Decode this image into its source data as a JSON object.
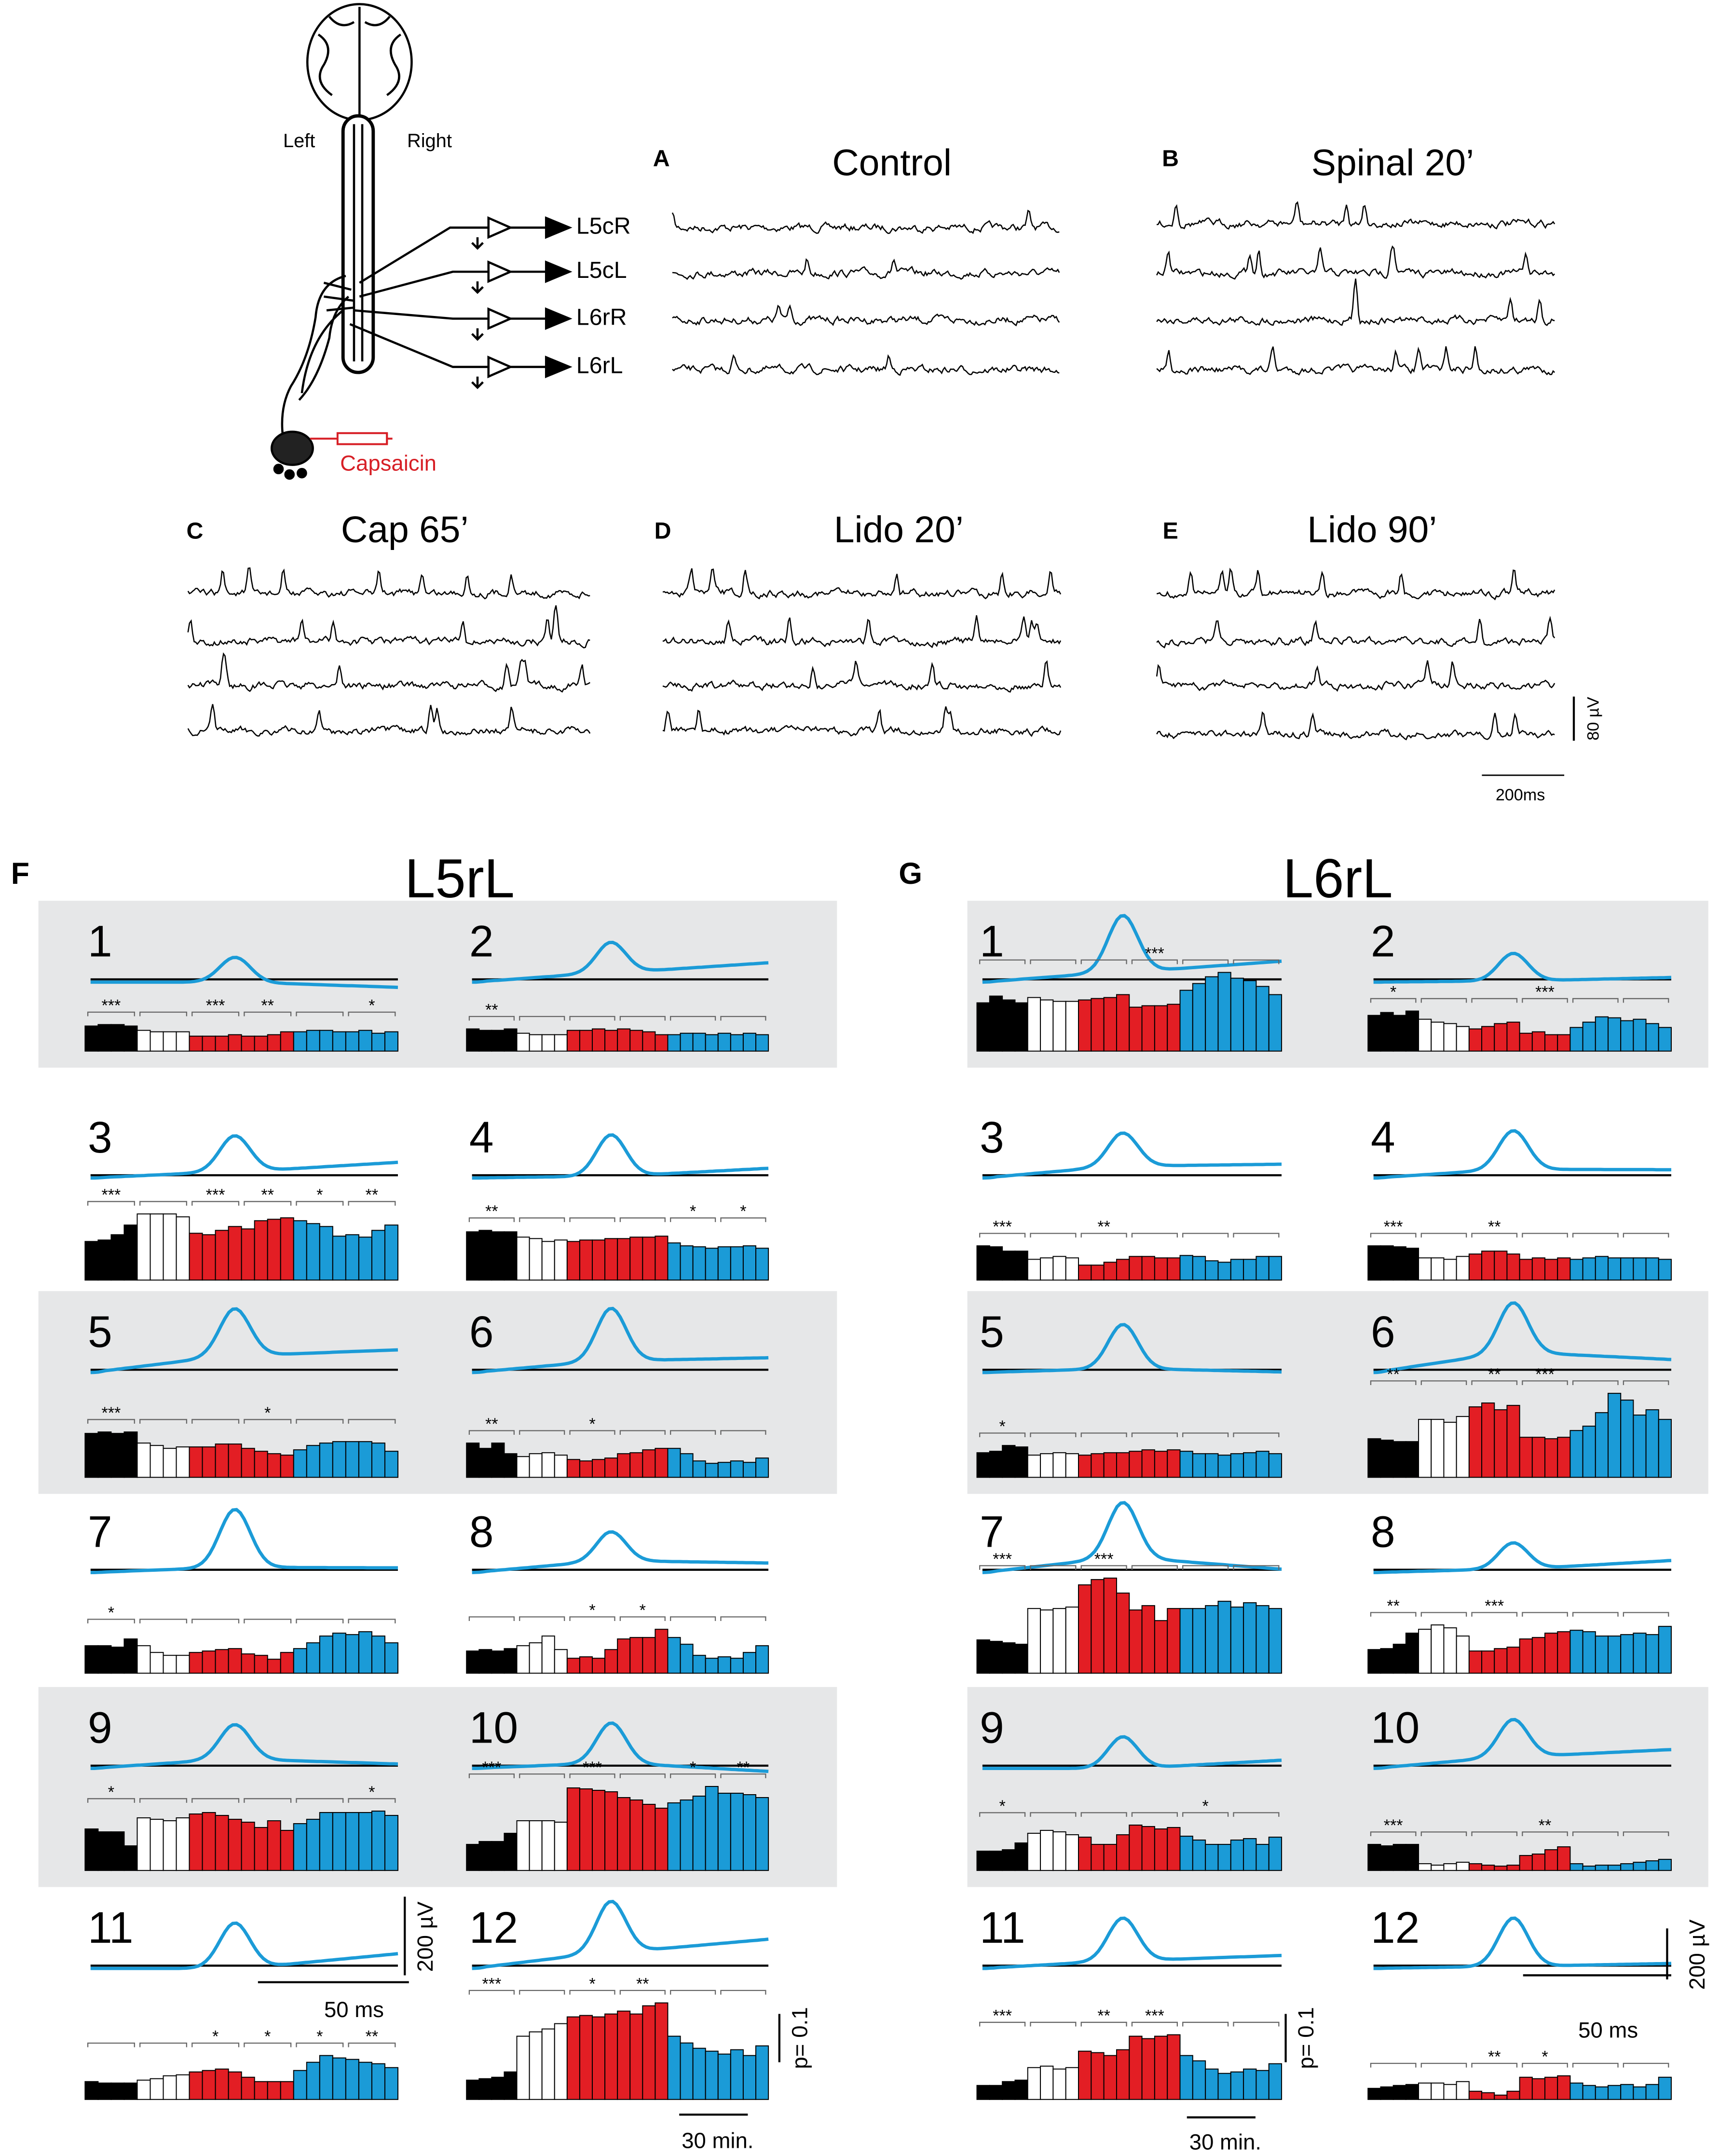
{
  "figure": {
    "rat": {
      "left": "Left",
      "right": "Right",
      "drug": "Capsaicin"
    },
    "channels": [
      "L5cR",
      "L5cL",
      "L6rR",
      "L6rL"
    ],
    "recordings": [
      {
        "letter": "A",
        "title": "Control"
      },
      {
        "letter": "B",
        "title": "Spinal 20’"
      },
      {
        "letter": "C",
        "title": "Cap 65’"
      },
      {
        "letter": "D",
        "title": "Lido 20’"
      },
      {
        "letter": "E",
        "title": "Lido 90’"
      }
    ],
    "eeg_scale": {
      "amplitude": "80 µV",
      "time": "200ms"
    },
    "phase_colors": [
      "#000000",
      "#ffffff",
      "#e31e24",
      "#1b9bd7"
    ],
    "groups": [
      {
        "letter": "F",
        "title": "L5rL",
        "amplitude_scale": "200 µV",
        "time_scale": "50 ms",
        "p_scale": {
          "value": 0.1,
          "label": "p= 0.1"
        },
        "bin_scale": "30 min.",
        "panels": [
          {
            "label": "1",
            "stars": [
              "***",
              null,
              "***",
              "**",
              null,
              "*"
            ],
            "bars": [
              0.052,
              0.055,
              0.055,
              0.052,
              0.043,
              0.04,
              0.04,
              0.04,
              0.031,
              0.031,
              0.031,
              0.034,
              0.031,
              0.031,
              0.034,
              0.04,
              0.04,
              0.043,
              0.043,
              0.04,
              0.04,
              0.043,
              0.037,
              0.04
            ]
          },
          {
            "label": "2",
            "stars": [
              "**",
              null,
              null,
              null,
              null,
              null
            ],
            "bars": [
              0.046,
              0.043,
              0.043,
              0.046,
              0.037,
              0.034,
              0.034,
              0.034,
              0.043,
              0.043,
              0.046,
              0.043,
              0.046,
              0.043,
              0.04,
              0.034,
              0.034,
              0.037,
              0.037,
              0.034,
              0.037,
              0.034,
              0.037,
              0.034
            ]
          },
          {
            "label": "3",
            "stars": [
              "***",
              null,
              "***",
              "**",
              "*",
              "**"
            ],
            "bars": [
              0.08,
              0.083,
              0.094,
              0.114,
              0.137,
              0.137,
              0.137,
              0.131,
              0.097,
              0.094,
              0.103,
              0.111,
              0.106,
              0.123,
              0.126,
              0.129,
              0.123,
              0.117,
              0.111,
              0.091,
              0.094,
              0.089,
              0.103,
              0.114
            ]
          },
          {
            "label": "4",
            "stars": [
              "**",
              null,
              null,
              null,
              "*",
              "*"
            ],
            "bars": [
              0.1,
              0.103,
              0.1,
              0.1,
              0.089,
              0.086,
              0.08,
              0.083,
              0.08,
              0.083,
              0.083,
              0.086,
              0.086,
              0.089,
              0.089,
              0.091,
              0.077,
              0.071,
              0.069,
              0.066,
              0.069,
              0.069,
              0.071,
              0.066
            ]
          },
          {
            "label": "5",
            "stars": [
              "***",
              null,
              null,
              "*",
              null,
              null
            ],
            "bars": [
              0.091,
              0.094,
              0.091,
              0.094,
              0.071,
              0.066,
              0.06,
              0.063,
              0.063,
              0.063,
              0.069,
              0.069,
              0.06,
              0.054,
              0.049,
              0.046,
              0.057,
              0.066,
              0.071,
              0.074,
              0.074,
              0.074,
              0.071,
              0.054
            ]
          },
          {
            "label": "6",
            "stars": [
              "**",
              null,
              "*",
              null,
              null,
              null
            ],
            "bars": [
              0.071,
              0.06,
              0.071,
              0.049,
              0.043,
              0.049,
              0.051,
              0.046,
              0.037,
              0.034,
              0.037,
              0.04,
              0.049,
              0.051,
              0.057,
              0.06,
              0.06,
              0.049,
              0.034,
              0.029,
              0.031,
              0.034,
              0.031,
              0.04
            ]
          },
          {
            "label": "7",
            "stars": [
              "*",
              null,
              null,
              null,
              null,
              null
            ],
            "bars": [
              0.057,
              0.057,
              0.054,
              0.071,
              0.057,
              0.043,
              0.037,
              0.037,
              0.043,
              0.046,
              0.049,
              0.051,
              0.04,
              0.037,
              0.029,
              0.043,
              0.051,
              0.063,
              0.077,
              0.083,
              0.08,
              0.086,
              0.077,
              0.063
            ]
          },
          {
            "label": "8",
            "stars": [
              null,
              null,
              "*",
              "*",
              null,
              null
            ],
            "bars": [
              0.046,
              0.049,
              0.046,
              0.051,
              0.057,
              0.063,
              0.077,
              0.049,
              0.031,
              0.034,
              0.031,
              0.049,
              0.071,
              0.074,
              0.074,
              0.091,
              0.074,
              0.06,
              0.037,
              0.031,
              0.034,
              0.031,
              0.043,
              0.057
            ]
          },
          {
            "label": "9",
            "stars": [
              "*",
              null,
              null,
              null,
              null,
              "*"
            ],
            "bars": [
              0.086,
              0.08,
              0.08,
              0.051,
              0.109,
              0.106,
              0.103,
              0.109,
              0.117,
              0.12,
              0.114,
              0.106,
              0.1,
              0.089,
              0.103,
              0.083,
              0.097,
              0.106,
              0.12,
              0.12,
              0.12,
              0.12,
              0.123,
              0.114
            ]
          },
          {
            "label": "10",
            "stars": [
              "***",
              null,
              "***",
              null,
              "*",
              "**"
            ],
            "bars": [
              0.054,
              0.06,
              0.06,
              0.077,
              0.103,
              0.103,
              0.103,
              0.1,
              0.171,
              0.169,
              0.166,
              0.163,
              0.151,
              0.146,
              0.137,
              0.129,
              0.14,
              0.146,
              0.154,
              0.174,
              0.16,
              0.16,
              0.157,
              0.151
            ]
          },
          {
            "label": "11",
            "stars": [
              null,
              null,
              "*",
              "*",
              "*",
              "**"
            ],
            "bars": [
              0.037,
              0.034,
              0.034,
              0.034,
              0.04,
              0.043,
              0.049,
              0.051,
              0.057,
              0.06,
              0.063,
              0.057,
              0.046,
              0.037,
              0.037,
              0.037,
              0.06,
              0.077,
              0.091,
              0.086,
              0.083,
              0.077,
              0.074,
              0.066
            ]
          },
          {
            "label": "12",
            "stars": [
              "***",
              null,
              "*",
              "**",
              null,
              null
            ],
            "bars": [
              0.04,
              0.043,
              0.046,
              0.057,
              0.131,
              0.14,
              0.146,
              0.157,
              0.171,
              0.174,
              0.171,
              0.177,
              0.183,
              0.177,
              0.194,
              0.2,
              0.131,
              0.117,
              0.106,
              0.1,
              0.094,
              0.103,
              0.091,
              0.111
            ]
          }
        ]
      },
      {
        "letter": "G",
        "title": "L6rL",
        "amplitude_scale": "200 µV",
        "time_scale": "50 ms",
        "p_scale": {
          "value": 0.1,
          "label": "p= 0.1"
        },
        "bin_scale": "30 min.",
        "panels": [
          {
            "label": "1",
            "stars": [
              null,
              null,
              null,
              "***",
              null,
              null
            ],
            "bars": [
              0.1,
              0.114,
              0.106,
              0.1,
              0.111,
              0.106,
              0.103,
              0.103,
              0.106,
              0.109,
              0.111,
              0.117,
              0.091,
              0.094,
              0.094,
              0.097,
              0.126,
              0.14,
              0.154,
              0.163,
              0.151,
              0.146,
              0.134,
              0.117
            ]
          },
          {
            "label": "2",
            "stars": [
              "*",
              null,
              null,
              "***",
              null,
              null
            ],
            "bars": [
              0.074,
              0.08,
              0.074,
              0.083,
              0.066,
              0.06,
              0.057,
              0.051,
              0.046,
              0.051,
              0.057,
              0.06,
              0.037,
              0.04,
              0.034,
              0.034,
              0.049,
              0.06,
              0.071,
              0.069,
              0.063,
              0.066,
              0.057,
              0.049
            ]
          },
          {
            "label": "3",
            "stars": [
              "***",
              null,
              "**",
              null,
              null,
              null
            ],
            "bars": [
              0.071,
              0.069,
              0.06,
              0.06,
              0.043,
              0.046,
              0.049,
              0.046,
              0.031,
              0.031,
              0.037,
              0.043,
              0.049,
              0.049,
              0.046,
              0.046,
              0.051,
              0.049,
              0.04,
              0.037,
              0.043,
              0.043,
              0.049,
              0.049
            ]
          },
          {
            "label": "4",
            "stars": [
              "***",
              null,
              "**",
              null,
              null,
              null
            ],
            "bars": [
              0.071,
              0.071,
              0.069,
              0.066,
              0.046,
              0.046,
              0.043,
              0.049,
              0.054,
              0.06,
              0.06,
              0.054,
              0.043,
              0.046,
              0.043,
              0.046,
              0.043,
              0.046,
              0.049,
              0.046,
              0.046,
              0.046,
              0.046,
              0.043
            ]
          },
          {
            "label": "5",
            "stars": [
              "*",
              null,
              null,
              null,
              null,
              null
            ],
            "bars": [
              0.051,
              0.054,
              0.066,
              0.063,
              0.046,
              0.049,
              0.051,
              0.049,
              0.046,
              0.049,
              0.051,
              0.051,
              0.054,
              0.057,
              0.054,
              0.057,
              0.054,
              0.049,
              0.049,
              0.046,
              0.049,
              0.051,
              0.054,
              0.049
            ]
          },
          {
            "label": "6",
            "stars": [
              "**",
              null,
              "**",
              "***",
              null,
              null
            ],
            "bars": [
              0.08,
              0.077,
              0.074,
              0.074,
              0.12,
              0.12,
              0.114,
              0.126,
              0.146,
              0.154,
              0.14,
              0.149,
              0.083,
              0.083,
              0.08,
              0.083,
              0.097,
              0.106,
              0.134,
              0.174,
              0.16,
              0.129,
              0.14,
              0.12
            ]
          },
          {
            "label": "7",
            "stars": [
              "***",
              null,
              "***",
              null,
              null,
              null
            ],
            "bars": [
              0.069,
              0.066,
              0.063,
              0.06,
              0.134,
              0.131,
              0.134,
              0.137,
              0.183,
              0.194,
              0.197,
              0.166,
              0.131,
              0.14,
              0.109,
              0.134,
              0.134,
              0.134,
              0.14,
              0.149,
              0.137,
              0.146,
              0.14,
              0.134
            ]
          },
          {
            "label": "8",
            "stars": [
              "**",
              null,
              "***",
              null,
              null,
              null
            ],
            "bars": [
              0.049,
              0.051,
              0.06,
              0.083,
              0.091,
              0.1,
              0.094,
              0.077,
              0.046,
              0.046,
              0.051,
              0.054,
              0.071,
              0.074,
              0.083,
              0.086,
              0.089,
              0.086,
              0.077,
              0.077,
              0.08,
              0.083,
              0.08,
              0.097
            ]
          },
          {
            "label": "9",
            "stars": [
              "*",
              null,
              null,
              null,
              "*",
              null
            ],
            "bars": [
              0.04,
              0.04,
              0.043,
              0.057,
              0.077,
              0.083,
              0.08,
              0.074,
              0.069,
              0.054,
              0.054,
              0.074,
              0.094,
              0.091,
              0.086,
              0.089,
              0.071,
              0.063,
              0.054,
              0.054,
              0.063,
              0.066,
              0.054,
              0.069
            ]
          },
          {
            "label": "10",
            "stars": [
              "***",
              null,
              null,
              "**",
              null,
              null
            ],
            "bars": [
              0.054,
              0.051,
              0.054,
              0.054,
              0.014,
              0.011,
              0.014,
              0.017,
              0.014,
              0.011,
              0.009,
              0.011,
              0.031,
              0.034,
              0.043,
              0.049,
              0.014,
              0.009,
              0.011,
              0.011,
              0.014,
              0.017,
              0.02,
              0.023
            ]
          },
          {
            "label": "11",
            "stars": [
              "***",
              null,
              "**",
              "***",
              null,
              null
            ],
            "bars": [
              0.029,
              0.029,
              0.037,
              0.04,
              0.066,
              0.069,
              0.063,
              0.066,
              0.1,
              0.097,
              0.091,
              0.103,
              0.131,
              0.126,
              0.131,
              0.134,
              0.091,
              0.08,
              0.063,
              0.054,
              0.057,
              0.063,
              0.06,
              0.074
            ]
          },
          {
            "label": "12",
            "stars": [
              null,
              null,
              "**",
              "*",
              null,
              null
            ],
            "bars": [
              0.023,
              0.026,
              0.029,
              0.031,
              0.034,
              0.034,
              0.031,
              0.037,
              0.017,
              0.014,
              0.009,
              0.017,
              0.046,
              0.043,
              0.046,
              0.049,
              0.034,
              0.029,
              0.026,
              0.029,
              0.031,
              0.026,
              0.031,
              0.046
            ]
          }
        ]
      }
    ]
  }
}
